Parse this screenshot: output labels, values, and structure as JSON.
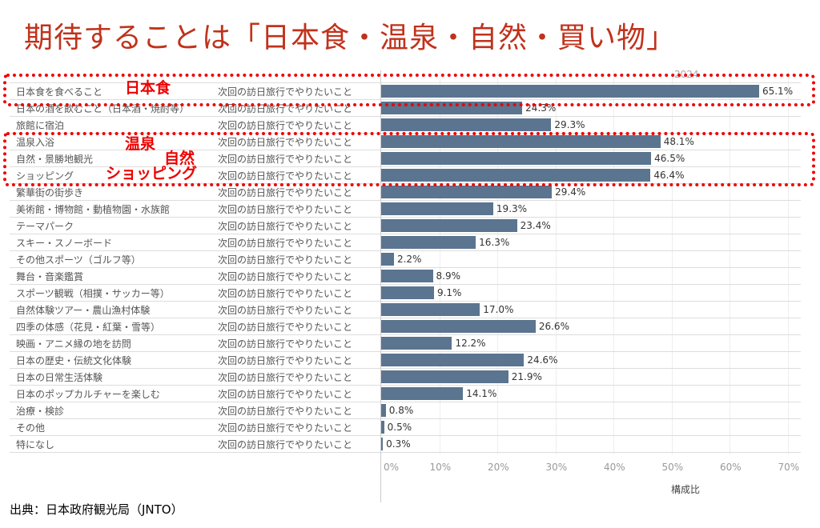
{
  "title": "期待することは「日本食・温泉・自然・買い物」",
  "source": "出典：日本政府観光局（JNTO）",
  "annotations": {
    "food": "日本食",
    "onsen": "温泉",
    "nature": "自然",
    "shopping": "ショッピング"
  },
  "colors": {
    "bar": "#5b7590",
    "title": "#c0321c",
    "highlight": "#e00000"
  },
  "chart_data": {
    "type": "bar",
    "orientation": "horizontal",
    "column_header": "2024",
    "xlabel": "構成比",
    "xlim": [
      0,
      70
    ],
    "ticks": [
      "0%",
      "10%",
      "20%",
      "30%",
      "40%",
      "50%",
      "60%",
      "70%"
    ],
    "tick_values": [
      0,
      10,
      20,
      30,
      40,
      50,
      60,
      70
    ],
    "category_group": "次回の訪日旅行でやりたいこと",
    "categories": [
      "日本食を食べること",
      "日本の酒を飲むこと（日本酒・焼酎等）",
      "旅館に宿泊",
      "温泉入浴",
      "自然・景勝地観光",
      "ショッピング",
      "繁華街の街歩き",
      "美術館・博物館・動植物園・水族館",
      "テーマパーク",
      "スキー・スノーボード",
      "その他スポーツ（ゴルフ等）",
      "舞台・音楽鑑賞",
      "スポーツ観戦（相撲・サッカー等）",
      "自然体験ツアー・農山漁村体験",
      "四季の体感（花見・紅葉・雪等）",
      "映画・アニメ縁の地を訪問",
      "日本の歴史・伝統文化体験",
      "日本の日常生活体験",
      "日本のポップカルチャーを楽しむ",
      "治療・検診",
      "その他",
      "特になし"
    ],
    "values": [
      65.1,
      24.3,
      29.3,
      48.1,
      46.5,
      46.4,
      29.4,
      19.3,
      23.4,
      16.3,
      2.2,
      8.9,
      9.1,
      17.0,
      26.6,
      12.2,
      24.6,
      21.9,
      14.1,
      0.8,
      0.5,
      0.3
    ],
    "labels": [
      "65.1%",
      "24.3%",
      "29.3%",
      "48.1%",
      "46.5%",
      "46.4%",
      "29.4%",
      "19.3%",
      "23.4%",
      "16.3%",
      "2.2%",
      "8.9%",
      "9.1%",
      "17.0%",
      "26.6%",
      "12.2%",
      "24.6%",
      "21.9%",
      "14.1%",
      "0.8%",
      "0.5%",
      "0.3%"
    ]
  }
}
